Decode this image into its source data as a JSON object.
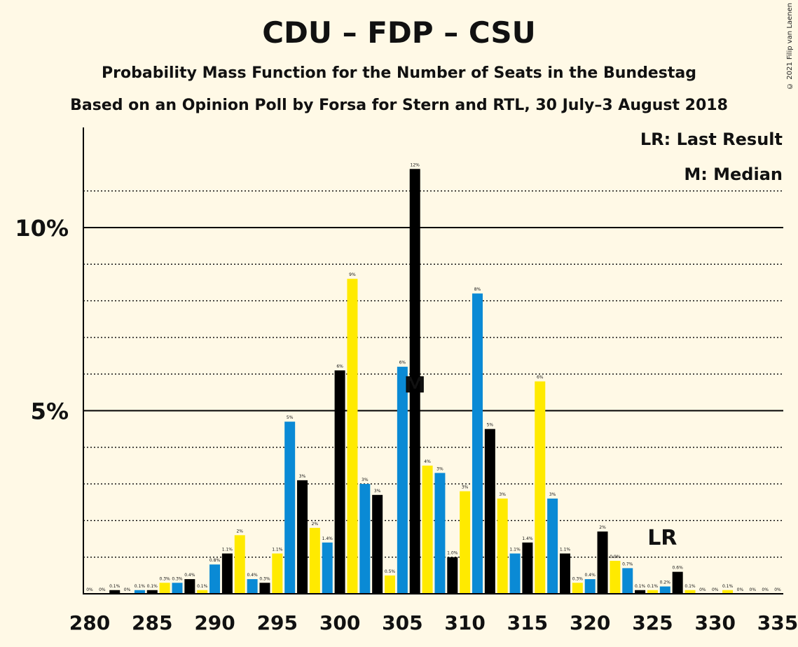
{
  "title": "CDU – FDP – CSU",
  "subtitle": "Probability Mass Function for the Number of Seats in the Bundestag",
  "subtitle2": "Based on an Opinion Poll by Forsa for Stern and RTL, 30 July–3 August 2018",
  "copyright": "© 2021 Filip van Laenen",
  "legend": {
    "lr": "LR: Last Result",
    "m": "M: Median"
  },
  "colors": {
    "blue": "#0a8ad5",
    "black": "#000000",
    "yellow": "#ffea00",
    "background": "#fff9e6"
  },
  "chart_data": {
    "type": "bar",
    "x": [
      280,
      281,
      282,
      283,
      284,
      285,
      286,
      287,
      288,
      289,
      290,
      291,
      292,
      293,
      294,
      295,
      296,
      297,
      298,
      299,
      300,
      301,
      302,
      303,
      304,
      305,
      306,
      307,
      308,
      309,
      310,
      311,
      312,
      313,
      314,
      315,
      316,
      317,
      318,
      319,
      320,
      321,
      322,
      323,
      324,
      325,
      326,
      327,
      328,
      329,
      330,
      331,
      332,
      333,
      334,
      335
    ],
    "values": [
      0,
      0,
      0.1,
      0,
      0.1,
      0.1,
      0.3,
      0.3,
      0.4,
      0.1,
      0.8,
      1.1,
      1.6,
      0.4,
      0.3,
      1.1,
      4.7,
      3.1,
      1.8,
      1.4,
      6.1,
      8.6,
      3.0,
      2.7,
      0.5,
      6.2,
      11.6,
      3.5,
      3.3,
      1.0,
      2.8,
      8.2,
      4.5,
      2.6,
      1.1,
      1.4,
      5.8,
      2.6,
      1.1,
      0.3,
      0.4,
      1.7,
      0.9,
      0.7,
      0.1,
      0.1,
      0.2,
      0.6,
      0.1,
      0,
      0,
      0.1,
      0,
      0,
      0,
      0
    ],
    "labels": [
      "0%",
      "0%",
      "0.1%",
      "0%",
      "0.1%",
      "0.1%",
      "0.3%",
      "0.3%",
      "0.4%",
      "0.1%",
      "0.8%",
      "1.1%",
      "2%",
      "0.4%",
      "0.3%",
      "1.1%",
      "5%",
      "3%",
      "2%",
      "1.4%",
      "6%",
      "9%",
      "3%",
      "3%",
      "0.5%",
      "6%",
      "12%",
      "4%",
      "3%",
      "1.0%",
      "3%",
      "8%",
      "5%",
      "3%",
      "1.1%",
      "1.4%",
      "6%",
      "3%",
      "1.1%",
      "0.3%",
      "0.4%",
      "2%",
      "0.9%",
      "0.7%",
      "0.1%",
      "0.1%",
      "0.2%",
      "0.6%",
      "0.1%",
      "0%",
      "0%",
      "0.1%",
      "0%",
      "0%",
      "0%",
      "0%"
    ],
    "bar_colors": [
      "yellow",
      "blue",
      "black",
      "yellow",
      "blue",
      "black",
      "yellow",
      "blue",
      "black",
      "yellow",
      "blue",
      "black",
      "yellow",
      "blue",
      "black",
      "yellow",
      "blue",
      "black",
      "yellow",
      "blue",
      "black",
      "yellow",
      "blue",
      "black",
      "yellow",
      "blue",
      "black",
      "yellow",
      "blue",
      "black",
      "yellow",
      "blue",
      "black",
      "yellow",
      "blue",
      "black",
      "yellow",
      "blue",
      "black",
      "yellow",
      "blue",
      "black",
      "yellow",
      "blue",
      "black",
      "yellow",
      "blue",
      "black",
      "yellow",
      "blue",
      "black",
      "yellow",
      "blue",
      "black",
      "yellow",
      "blue"
    ],
    "xticks": [
      "280",
      "285",
      "290",
      "295",
      "300",
      "305",
      "310",
      "315",
      "320",
      "325",
      "330",
      "335"
    ],
    "yticks": [
      {
        "v": 5,
        "label": "5%"
      },
      {
        "v": 10,
        "label": "10%"
      }
    ],
    "ylim": [
      0,
      12.5
    ],
    "median": {
      "x": 306,
      "label": "M"
    },
    "last_result": {
      "x": 326,
      "label": "LR"
    },
    "grid": "dotted at every 1%, solid at 5% and 10%"
  }
}
